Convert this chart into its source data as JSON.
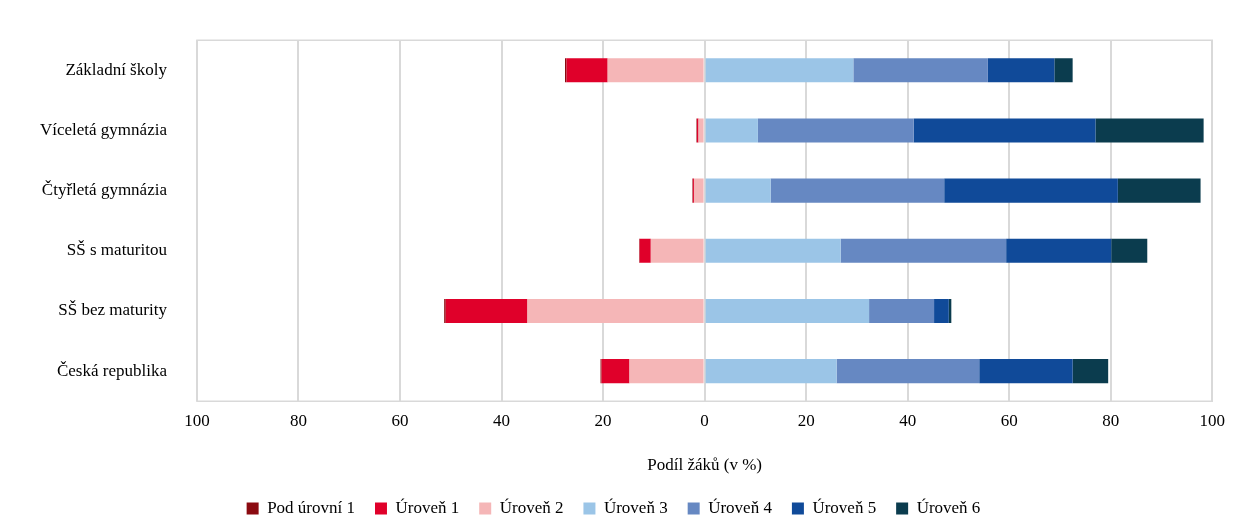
{
  "chart_data": {
    "type": "bar",
    "orientation": "horizontal",
    "stacked": true,
    "xlabel": "Podíl žáků (v %)",
    "categories": [
      "Základní školy",
      "Víceletá gymnázia",
      "Čtyřletá gymnázia",
      "SŠ s maturitou",
      "SŠ bez maturity",
      "Česká republika"
    ],
    "series": [
      {
        "name": "Úroveň 2",
        "color": "#f5b6b7",
        "values": [
          -19.1,
          -1.2,
          -2.1,
          -10.6,
          -34.9,
          -14.8
        ]
      },
      {
        "name": "Úroveň 1",
        "color": "#e0002a",
        "values": [
          -8.1,
          -0.3,
          -0.2,
          -2.2,
          -16.1,
          -5.5
        ]
      },
      {
        "name": "Pod úrovní 1",
        "color": "#8b0a10",
        "values": [
          -0.3,
          -0.1,
          -0.1,
          -0.1,
          -0.3,
          -0.2
        ]
      },
      {
        "name": "Úroveň 3",
        "color": "#9bc5e7",
        "values": [
          29.3,
          10.5,
          13.0,
          26.8,
          32.4,
          26.0
        ]
      },
      {
        "name": "Úroveň 4",
        "color": "#6688c2",
        "values": [
          26.5,
          30.7,
          34.2,
          32.6,
          12.8,
          28.1
        ]
      },
      {
        "name": "Úroveň 5",
        "color": "#104a99",
        "values": [
          13.1,
          35.8,
          34.2,
          20.7,
          2.9,
          18.4
        ]
      },
      {
        "name": "Úroveň 6",
        "color": "#0b3c4e",
        "values": [
          3.6,
          21.3,
          16.3,
          7.1,
          0.5,
          7.0
        ]
      }
    ],
    "xlim": [
      -100,
      100
    ],
    "xticks": [
      {
        "value": -100,
        "label": "100"
      },
      {
        "value": -80,
        "label": "80"
      },
      {
        "value": -60,
        "label": "60"
      },
      {
        "value": -40,
        "label": "40"
      },
      {
        "value": -20,
        "label": "20"
      },
      0,
      20,
      40,
      60,
      80,
      100
    ],
    "grid": "x",
    "legend": "bottom"
  }
}
